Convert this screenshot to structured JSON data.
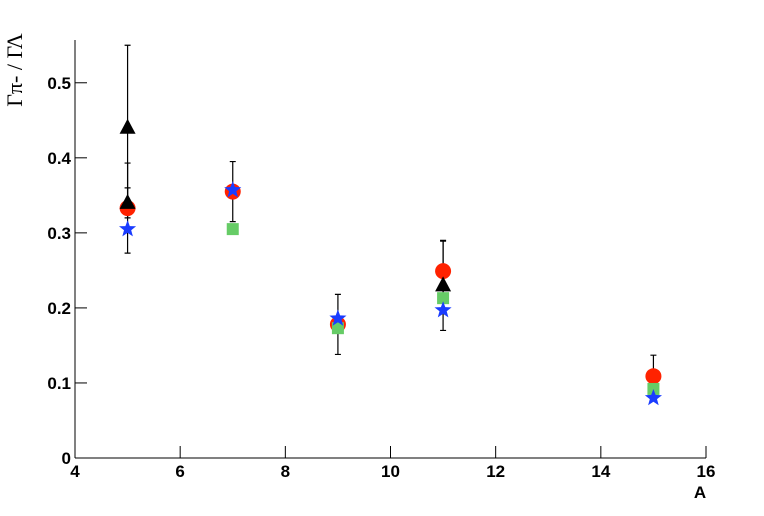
{
  "chart_data": {
    "type": "scatter",
    "x_label": "A",
    "y_label": "Γπ- / ΓΛ",
    "xlim": [
      4,
      16
    ],
    "xticks": [
      4,
      6,
      8,
      10,
      12,
      14,
      16
    ],
    "ylim": [
      0,
      0.557
    ],
    "yticks": [
      0,
      0.1,
      0.2,
      0.3,
      0.4,
      0.5
    ],
    "series": [
      {
        "marker": "circle",
        "color": "#ff2200",
        "x": [
          5,
          7,
          9,
          11,
          15
        ],
        "values": [
          0.333,
          0.355,
          0.178,
          0.249,
          0.109
        ],
        "errors": [
          0.06,
          0.04,
          0.04,
          0.04,
          0.028
        ]
      },
      {
        "marker": "square",
        "color": "#66cc66",
        "x": [
          7,
          9,
          11,
          15
        ],
        "values": [
          0.305,
          0.173,
          0.213,
          0.092
        ]
      },
      {
        "marker": "star",
        "color": "#1a3cff",
        "x": [
          5,
          7,
          9,
          11,
          15
        ],
        "values": [
          0.305,
          0.357,
          0.186,
          0.197,
          0.08
        ]
      },
      {
        "marker": "triangle",
        "color": "#000000",
        "x": [
          5,
          5,
          11
        ],
        "values": [
          0.44,
          0.34,
          0.23
        ],
        "errors": [
          0.11,
          0.02,
          0.06
        ]
      }
    ]
  }
}
